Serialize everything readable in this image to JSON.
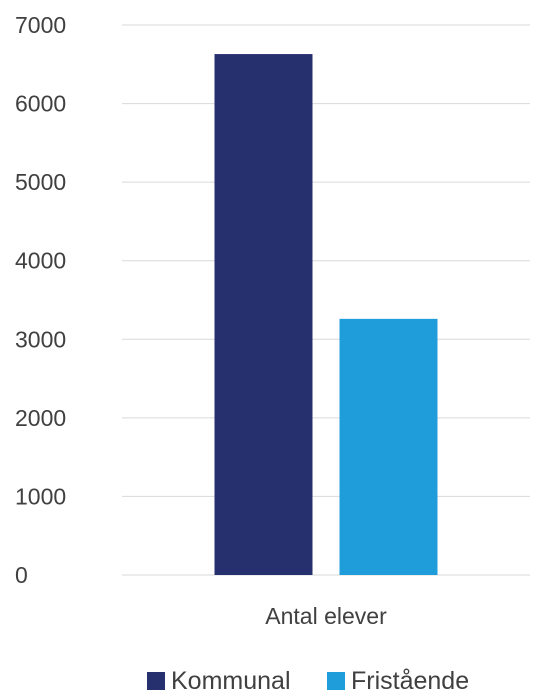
{
  "chart_data": {
    "type": "bar",
    "categories": [
      "Antal elever"
    ],
    "series": [
      {
        "name": "Kommunal",
        "values": [
          6630
        ],
        "color": "#26306f"
      },
      {
        "name": "Fristående",
        "values": [
          3260
        ],
        "color": "#1f9ddb"
      }
    ],
    "title": "",
    "xlabel": "",
    "ylabel": "",
    "ylim": [
      0,
      7000
    ],
    "yticks": [
      "0",
      "1000",
      "2000",
      "3000",
      "4000",
      "5000",
      "6000",
      "7000"
    ],
    "grid": true,
    "legend_position": "bottom",
    "gridline_color": "#d9d9d9"
  }
}
